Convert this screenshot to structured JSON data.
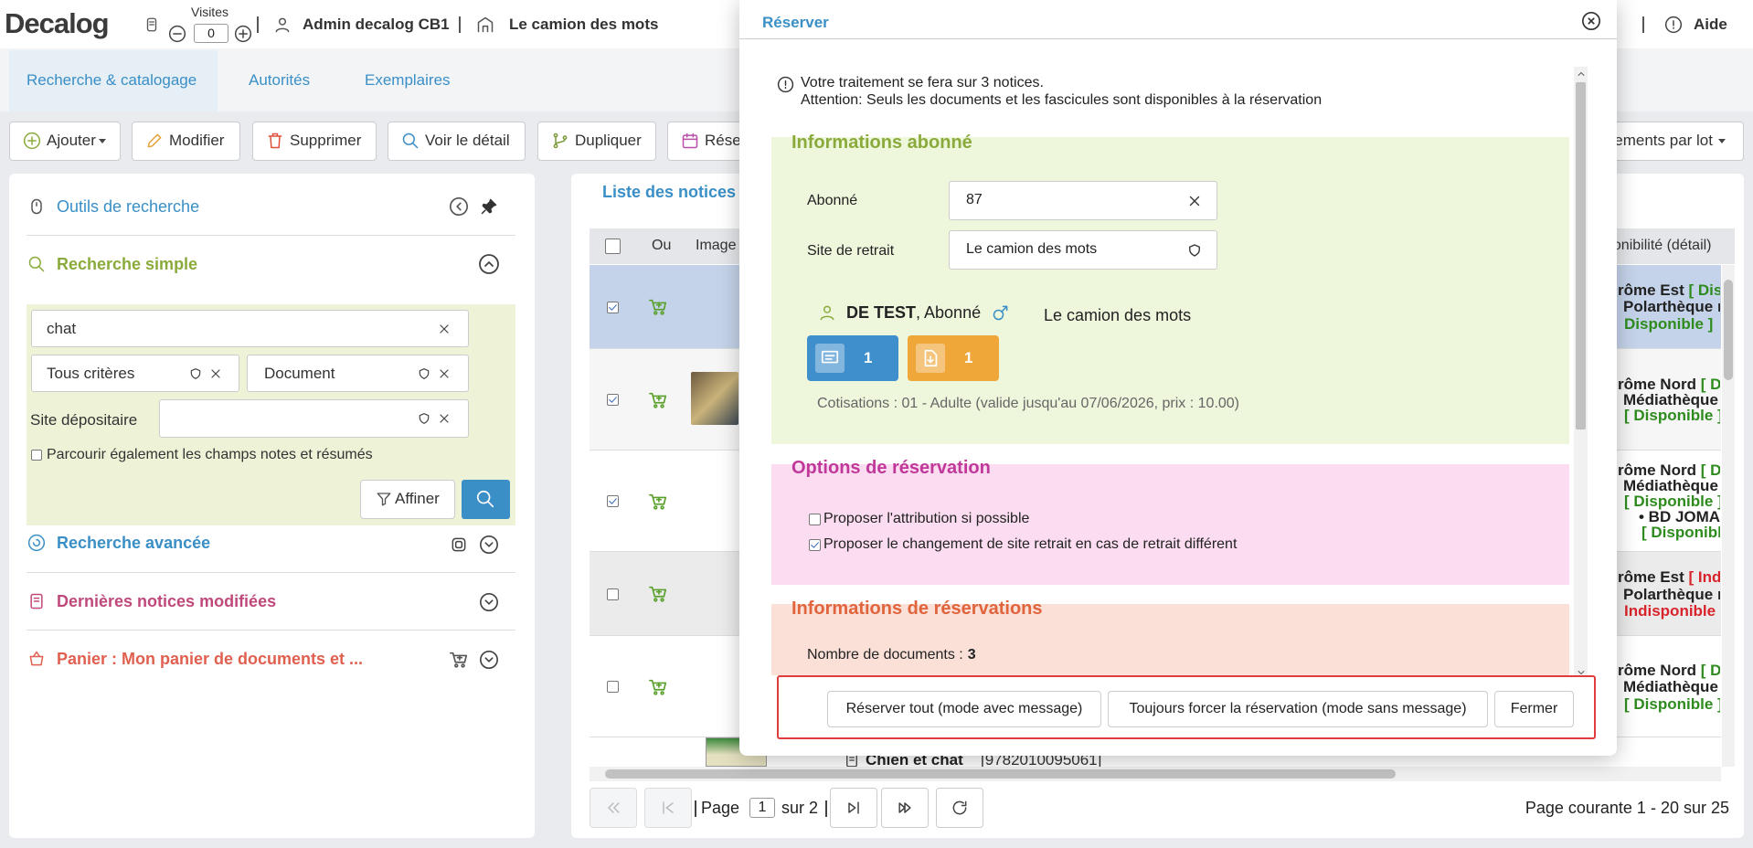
{
  "header": {
    "logo": "Decalog",
    "visits_label": "Visites",
    "visits_count": "0",
    "user": "Admin decalog CB1",
    "site": "Le camion des mots",
    "help": "Aide"
  },
  "tabs": [
    "Recherche & catalogage",
    "Autorités",
    "Exemplaires"
  ],
  "toolbar": [
    "Ajouter",
    "Modifier",
    "Supprimer",
    "Voir le détail",
    "Dupliquer",
    "Rése",
    "ements par lot"
  ],
  "search_panel": {
    "title": "Outils de recherche",
    "simple_search": "Recherche simple",
    "query": "chat",
    "criteria": "Tous critères",
    "doc_type": "Document",
    "site_label": "Site dépositaire",
    "notes_checkbox": "Parcourir également les champs notes et résumés",
    "refine": "Affiner",
    "advanced": "Recherche avancée",
    "recent": "Dernières notices modifiées",
    "cart": "Panier : Mon panier de documents et ..."
  },
  "results": {
    "title": "Liste des notices",
    "columns": [
      "Ou",
      "Image",
      "ponibilité (détail)"
    ],
    "rows": [
      [
        [
          "rôme Est ",
          "[ Disp"
        ],
        [
          "Polarthèque r"
        ],
        [
          "Disponible ]"
        ]
      ],
      [
        [
          "rôme Nord ",
          "[ Dis"
        ],
        [
          "Médiathèque"
        ],
        [
          "[ Disponible ]"
        ]
      ],
      [
        [
          "rôme Nord ",
          "[ Dis"
        ],
        [
          "Médiathèque"
        ],
        [
          "[ Disponible ]"
        ],
        [
          "• BD JOMA"
        ],
        [
          "[ Disponibl"
        ]
      ],
      [
        [
          "rôme Est ",
          "[ Indi"
        ],
        [
          "Polarthèque r"
        ],
        [
          "Indisponible ]"
        ]
      ],
      [
        [
          "rôme Nord ",
          "[ Dis"
        ],
        [
          "Médiathèque"
        ],
        [
          "[ Disponible ]"
        ]
      ]
    ],
    "partial_row": {
      "title": "Chien et chat",
      "isbn": "[9782010095061]"
    },
    "pager": {
      "page_label": "Page",
      "page": "1",
      "of": "sur 2",
      "summary": "Page courante 1 - 20 sur 25"
    }
  },
  "dialog": {
    "title": "Réserver",
    "notice": [
      "Votre traitement se fera sur 3 notices.",
      "Attention: Seuls les documents et les fascicules sont disponibles à la réservation"
    ],
    "subscriber": {
      "title": "Informations abonné",
      "subscriber_label": "Abonné",
      "subscriber_value": "87",
      "pickup_label": "Site de retrait",
      "pickup_value": "Le camion des mots",
      "name": "DE TEST",
      "role": ", Abonné",
      "site": "Le camion des mots",
      "badges": [
        "1",
        "1"
      ],
      "fees": "Cotisations : 01 - Adulte (valide jusqu'au 07/06/2026, prix : 10.00)"
    },
    "options": {
      "title": "Options de réservation",
      "items": [
        {
          "label": "Proposer l'attribution si possible",
          "checked": false
        },
        {
          "label": "Proposer le changement de site retrait en cas de retrait différent",
          "checked": true
        }
      ]
    },
    "info": {
      "title": "Informations de réservations",
      "count_label": "Nombre de documents :",
      "count": "3"
    },
    "buttons": [
      "Réserver tout (mode avec message)",
      "Toujours forcer la réservation (mode sans message)",
      "Fermer"
    ]
  }
}
